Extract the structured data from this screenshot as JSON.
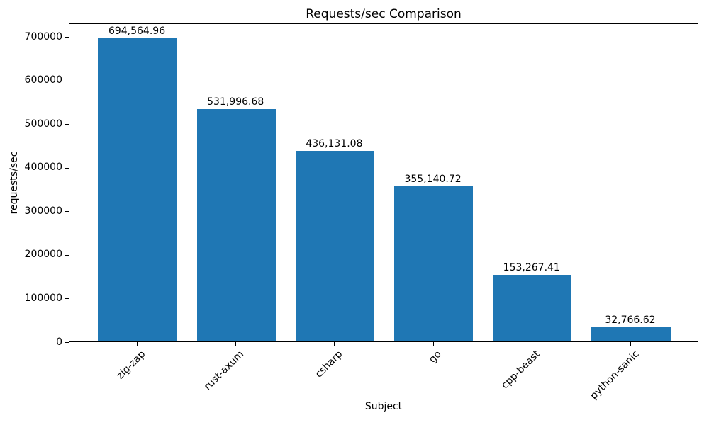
{
  "chart_data": {
    "type": "bar",
    "title": "Requests/sec Comparison",
    "xlabel": "Subject",
    "ylabel": "requests/sec",
    "categories": [
      "zig-zap",
      "rust-axum",
      "csharp",
      "go",
      "cpp-beast",
      "python-sanic"
    ],
    "values": [
      694564.96,
      531996.68,
      436131.08,
      355140.72,
      153267.41,
      32766.62
    ],
    "value_labels": [
      "694,564.96",
      "531,996.68",
      "436,131.08",
      "355,140.72",
      "153,267.41",
      "32,766.62"
    ],
    "yticks": [
      0,
      100000,
      200000,
      300000,
      400000,
      500000,
      600000,
      700000
    ],
    "ytick_labels": [
      "0",
      "100000",
      "200000",
      "300000",
      "400000",
      "500000",
      "600000",
      "700000"
    ],
    "ylim": [
      0,
      730900
    ],
    "bar_color": "#1f77b4",
    "text_color": "#000000",
    "grid": false,
    "legend": "none",
    "x_tick_rotation_deg": 45
  }
}
